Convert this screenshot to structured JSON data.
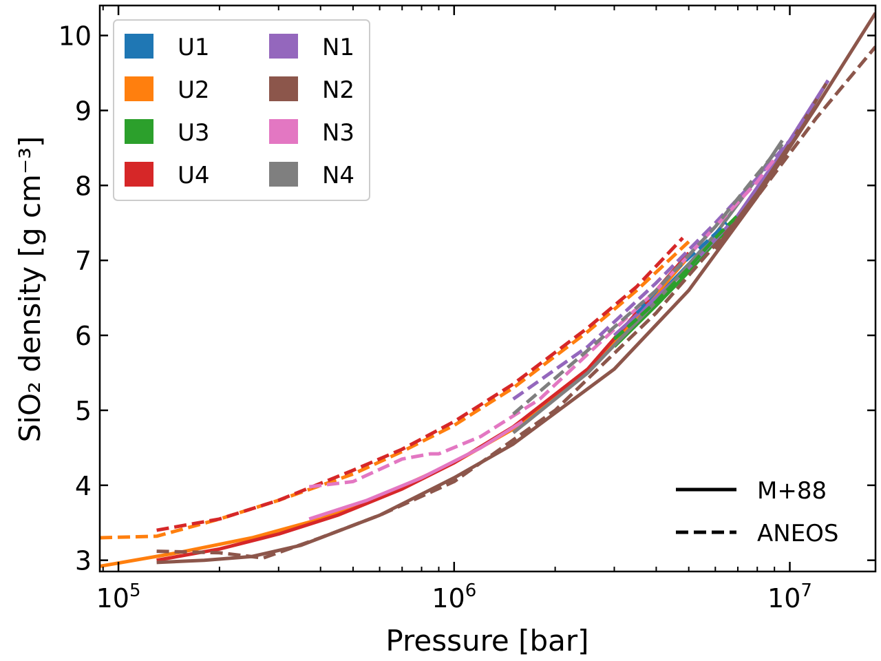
{
  "chart_data": {
    "type": "line",
    "xscale": "log",
    "xlabel": "Pressure [bar]",
    "ylabel": "SiO₂ density [g cm⁻³]",
    "xlim": [
      88000,
      18000000
    ],
    "ylim": [
      2.85,
      10.4
    ],
    "xticks": [
      {
        "value": 100000,
        "base": "10",
        "exp": "5"
      },
      {
        "value": 1000000,
        "base": "10",
        "exp": "6"
      },
      {
        "value": 10000000,
        "base": "10",
        "exp": "7"
      }
    ],
    "yticks": [
      3,
      4,
      5,
      6,
      7,
      8,
      9,
      10
    ],
    "legend_colors": {
      "title": "U1 U2 U3 U4 N1 N2 N3 N4",
      "location": "upper-left",
      "entries": [
        {
          "label": "U1",
          "color": "#1f77b4"
        },
        {
          "label": "U2",
          "color": "#ff7f0e"
        },
        {
          "label": "U3",
          "color": "#2ca02c"
        },
        {
          "label": "U4",
          "color": "#d62728"
        },
        {
          "label": "N1",
          "color": "#9467bd"
        },
        {
          "label": "N2",
          "color": "#8c564b"
        },
        {
          "label": "N3",
          "color": "#e377c2"
        },
        {
          "label": "N4",
          "color": "#7f7f7f"
        }
      ]
    },
    "legend_styles": {
      "location": "lower-right",
      "entries": [
        {
          "label": "M+88",
          "style": "solid"
        },
        {
          "label": "ANEOS",
          "style": "dashed"
        }
      ]
    },
    "series": [
      {
        "name": "U1 M+88",
        "color": "#1f77b4",
        "style": "solid",
        "x": [
          3000000,
          4000000,
          5000000,
          6000000
        ],
        "y": [
          5.95,
          6.5,
          6.95,
          7.35
        ]
      },
      {
        "name": "U2 M+88",
        "color": "#ff7f0e",
        "style": "solid",
        "x": [
          88000,
          150000,
          250000,
          400000,
          600000,
          1000000,
          1500000,
          2500000,
          4000000,
          5000000
        ],
        "y": [
          2.92,
          3.1,
          3.3,
          3.55,
          3.85,
          4.3,
          4.75,
          5.5,
          6.55,
          7.05
        ]
      },
      {
        "name": "U3 M+88",
        "color": "#2ca02c",
        "style": "solid",
        "x": [
          3000000,
          4000000,
          5000000,
          6000000,
          7200000
        ],
        "y": [
          5.85,
          6.4,
          6.85,
          7.25,
          7.6
        ]
      },
      {
        "name": "U4 M+88",
        "color": "#d62728",
        "style": "solid",
        "x": [
          130000,
          200000,
          300000,
          450000,
          700000,
          1000000,
          1500000,
          2500000,
          4000000,
          5000000
        ],
        "y": [
          3.0,
          3.15,
          3.35,
          3.6,
          3.95,
          4.3,
          4.78,
          5.55,
          6.6,
          7.1
        ]
      },
      {
        "name": "N1 M+88",
        "color": "#9467bd",
        "style": "solid",
        "x": [
          3000000,
          5000000,
          7000000,
          10000000,
          13000000
        ],
        "y": [
          6.0,
          6.9,
          7.6,
          8.6,
          9.4
        ]
      },
      {
        "name": "N2 M+88",
        "color": "#8c564b",
        "style": "solid",
        "x": [
          130000,
          180000,
          250000,
          350000,
          600000,
          1000000,
          1500000,
          3000000,
          5000000,
          8000000,
          12000000,
          18000000
        ],
        "y": [
          2.97,
          3.0,
          3.05,
          3.2,
          3.6,
          4.1,
          4.55,
          5.55,
          6.6,
          7.85,
          9.05,
          10.3
        ]
      },
      {
        "name": "N2 M+88 upper",
        "color": "#8c564b",
        "style": "solid",
        "x": [
          6000000,
          8000000,
          10000000,
          13000000
        ],
        "y": [
          7.15,
          7.9,
          8.55,
          9.4
        ]
      },
      {
        "name": "N3 M+88",
        "color": "#e377c2",
        "style": "solid",
        "x": [
          370000,
          550000,
          800000,
          1200000,
          1600000
        ],
        "y": [
          3.55,
          3.8,
          4.1,
          4.5,
          4.85
        ]
      },
      {
        "name": "N4 M+88",
        "color": "#7f7f7f",
        "style": "solid",
        "x": [
          1500000,
          2500000,
          4000000,
          6000000,
          8000000,
          9500000
        ],
        "y": [
          4.7,
          5.5,
          6.45,
          7.35,
          8.1,
          8.6
        ]
      },
      {
        "name": "U1 ANEOS",
        "color": "#1f77b4",
        "style": "dashed",
        "x": [
          3500000,
          4500000,
          5500000,
          6500000
        ],
        "y": [
          6.3,
          6.85,
          7.2,
          7.5
        ]
      },
      {
        "name": "U2 ANEOS",
        "color": "#ff7f0e",
        "style": "dashed",
        "x": [
          88000,
          130000,
          200000,
          300000,
          500000,
          700000,
          1000000,
          1500000,
          2500000,
          3500000,
          5000000
        ],
        "y": [
          3.3,
          3.32,
          3.55,
          3.8,
          4.15,
          4.45,
          4.8,
          5.3,
          6.05,
          6.6,
          7.25
        ]
      },
      {
        "name": "U3 ANEOS",
        "color": "#2ca02c",
        "style": "dashed",
        "x": [
          3000000,
          4000000,
          5000000,
          6000000,
          7000000
        ],
        "y": [
          5.95,
          6.45,
          6.9,
          7.3,
          7.6
        ]
      },
      {
        "name": "U4 ANEOS",
        "color": "#d62728",
        "style": "dashed",
        "x": [
          130000,
          200000,
          300000,
          500000,
          700000,
          1000000,
          1500000,
          2500000,
          3500000,
          4800000
        ],
        "y": [
          3.4,
          3.55,
          3.8,
          4.2,
          4.48,
          4.85,
          5.35,
          6.1,
          6.65,
          7.3
        ]
      },
      {
        "name": "N1 ANEOS",
        "color": "#9467bd",
        "style": "dashed",
        "x": [
          1500000,
          2500000,
          4000000,
          6000000,
          8000000,
          10000000,
          13000000
        ],
        "y": [
          5.15,
          5.85,
          6.7,
          7.5,
          8.1,
          8.6,
          9.4
        ]
      },
      {
        "name": "N2 ANEOS",
        "color": "#8c564b",
        "style": "dashed",
        "x": [
          130000,
          200000,
          270000,
          400000,
          600000,
          1000000,
          2000000,
          4000000,
          8000000,
          12000000,
          18000000
        ],
        "y": [
          3.12,
          3.1,
          3.03,
          3.3,
          3.6,
          4.05,
          5.0,
          6.3,
          7.85,
          8.9,
          9.85
        ]
      },
      {
        "name": "N3 ANEOS",
        "color": "#e377c2",
        "style": "dashed",
        "x": [
          370000,
          500000,
          700000,
          850000,
          900000,
          1200000,
          1800000,
          2500000,
          4000000,
          6000000,
          8000000,
          9000000
        ],
        "y": [
          3.98,
          4.05,
          4.35,
          4.42,
          4.42,
          4.65,
          5.15,
          5.75,
          6.6,
          7.45,
          8.05,
          8.35
        ]
      },
      {
        "name": "N4 ANEOS",
        "color": "#7f7f7f",
        "style": "dashed",
        "x": [
          1500000,
          2500000,
          4000000,
          6000000,
          8000000,
          9500000
        ],
        "y": [
          4.95,
          5.8,
          6.6,
          7.45,
          8.15,
          8.55
        ]
      }
    ]
  }
}
